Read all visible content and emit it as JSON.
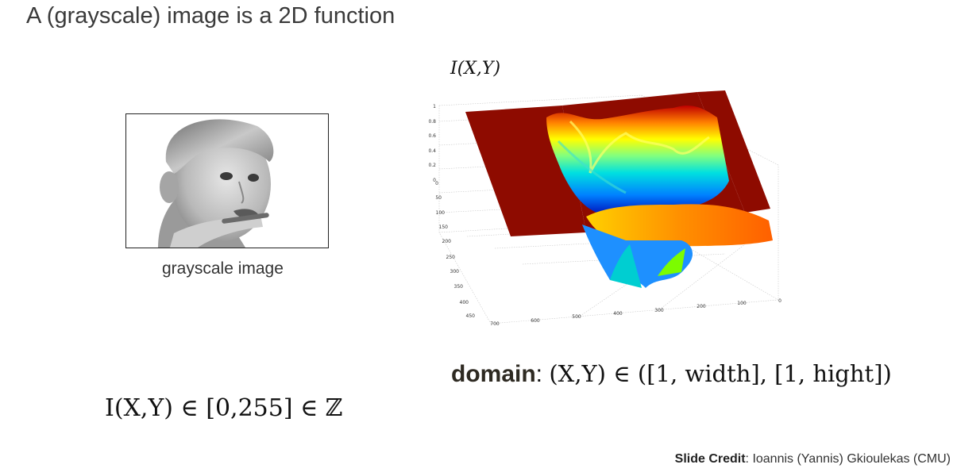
{
  "slide": {
    "title": "A (grayscale) image is a 2D function",
    "caption": "grayscale image",
    "plot_label": "I(X,Y)",
    "domain_word": "domain",
    "domain_sep": ":",
    "domain_math": "(X,Y) ∈ ([1, width], [1, hight])",
    "range_math": "I(X,Y) ∈ [0,255] ∈ ℤ",
    "credit_bold": "Slide Credit",
    "credit_rest": ": Ioannis (Yannis) Gkioulekas (CMU)"
  },
  "plot_axes": {
    "z_ticks": [
      "1",
      "0.8",
      "0.6",
      "0.4",
      "0.2",
      "0"
    ],
    "y_ticks": [
      "0",
      "50",
      "100",
      "150",
      "200",
      "250",
      "300",
      "350",
      "400",
      "450"
    ],
    "x_ticks": [
      "700",
      "600",
      "500",
      "400",
      "300",
      "200",
      "100",
      "0"
    ]
  },
  "colors": {
    "background_plane": "#8e0b00",
    "colormap": "jet"
  },
  "icons": {
    "photo": "child-portrait-image"
  }
}
